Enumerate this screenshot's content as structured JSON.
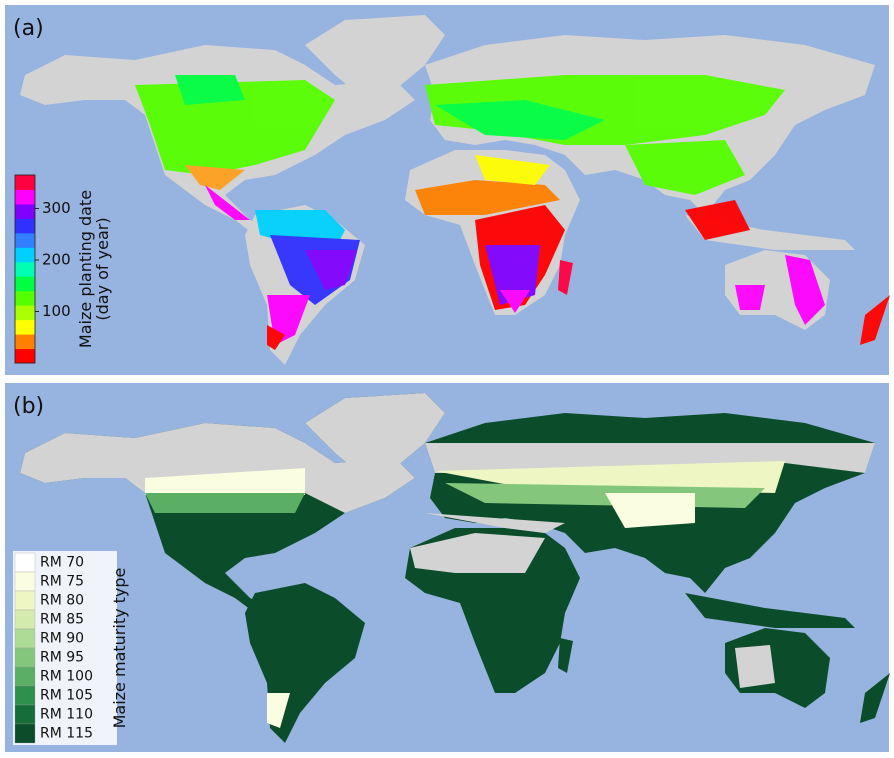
{
  "panels": [
    {
      "label": "(a)",
      "colorbar": {
        "title": [
          "Maize planting date",
          "(day of year)"
        ],
        "lim": [
          0,
          365
        ],
        "ticks": [
          100,
          200,
          300
        ],
        "colors": [
          "#ff0000",
          "#ff8000",
          "#ffff00",
          "#aaff00",
          "#55ff00",
          "#00ff40",
          "#00ffb0",
          "#00d0ff",
          "#3080ff",
          "#3030ff",
          "#8000ff",
          "#ff00ff",
          "#ff0040"
        ]
      }
    },
    {
      "label": "(b)",
      "legend": {
        "title": "Maize maturity type",
        "items": [
          {
            "name": "RM 70",
            "color": "#ffffff"
          },
          {
            "name": "RM 75",
            "color": "#fbfde0"
          },
          {
            "name": "RM 80",
            "color": "#eef7c4"
          },
          {
            "name": "RM 85",
            "color": "#d3ecae"
          },
          {
            "name": "RM 90",
            "color": "#aedb96"
          },
          {
            "name": "RM 95",
            "color": "#84c77c"
          },
          {
            "name": "RM 100",
            "color": "#5aaf64"
          },
          {
            "name": "RM 105",
            "color": "#2f8f4c"
          },
          {
            "name": "RM 110",
            "color": "#156d38"
          },
          {
            "name": "RM 115",
            "color": "#0b4d2a"
          }
        ]
      }
    }
  ]
}
